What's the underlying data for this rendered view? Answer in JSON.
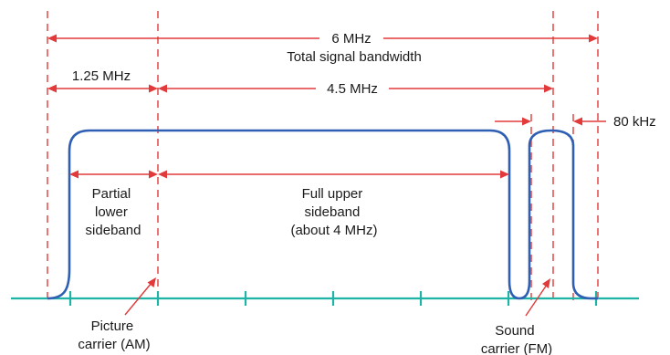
{
  "labels": {
    "total_value": "6 MHz",
    "total_text": "Total signal bandwidth",
    "lower_width": "1.25 MHz",
    "picture_sound_spacing": "4.5 MHz",
    "sound_width": "80 kHz",
    "lower_sideband": [
      "Partial",
      "lower",
      "sideband"
    ],
    "upper_sideband": [
      "Full upper",
      "sideband",
      "(about 4 MHz)"
    ],
    "picture_carrier": [
      "Picture",
      "carrier (AM)"
    ],
    "sound_carrier": [
      "Sound",
      "carrier (FM)"
    ]
  },
  "colors": {
    "dimension": "#e23a3a",
    "spectrum": "#2f5fb3",
    "axis": "#1fb3a5"
  }
}
